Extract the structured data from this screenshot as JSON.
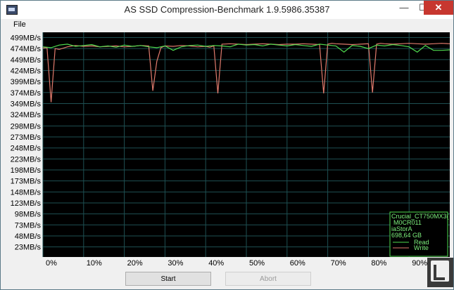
{
  "window": {
    "title": "AS SSD Compression-Benchmark 1.9.5986.35387",
    "minimize_glyph": "—",
    "maximize_glyph": "☐",
    "close_glyph": "✕"
  },
  "menu": {
    "file": "File"
  },
  "legend": {
    "drive_name": "Crucial_CT750MX3(",
    "firmware": "M0CR011",
    "driver": "iaStorA",
    "capacity": "698,64 GB",
    "read_label": "Read",
    "write_label": "Write"
  },
  "buttons": {
    "start": "Start",
    "abort": "Abort"
  },
  "colors": {
    "plot_bg": "#000000",
    "grid": "#1e4f52",
    "read": "#4fdc4f",
    "write": "#e07a6c",
    "legend_border": "#4fdc4f"
  },
  "chart_data": {
    "type": "line",
    "y_tick_labels": [
      "499MB/s",
      "474MB/s",
      "449MB/s",
      "424MB/s",
      "399MB/s",
      "374MB/s",
      "349MB/s",
      "324MB/s",
      "298MB/s",
      "273MB/s",
      "248MB/s",
      "223MB/s",
      "198MB/s",
      "173MB/s",
      "148MB/s",
      "123MB/s",
      "98MB/s",
      "73MB/s",
      "48MB/s",
      "23MB/s"
    ],
    "y_tick_values": [
      499,
      474,
      449,
      424,
      399,
      374,
      349,
      324,
      298,
      273,
      248,
      223,
      198,
      173,
      148,
      123,
      98,
      73,
      48,
      23
    ],
    "x_tick_labels": [
      "0%",
      "10%",
      "20%",
      "30%",
      "40%",
      "50%",
      "60%",
      "70%",
      "80%",
      "90%"
    ],
    "x_tick_values": [
      0,
      10,
      20,
      30,
      40,
      50,
      60,
      70,
      80,
      90
    ],
    "xlim": [
      0,
      100
    ],
    "ylim": [
      0,
      511
    ],
    "grid": true,
    "legend_position": "bottom-right",
    "series": [
      {
        "name": "Read",
        "x": [
          0,
          2,
          4,
          6,
          8,
          10,
          12,
          14,
          16,
          18,
          20,
          22,
          24,
          26,
          28,
          30,
          32,
          34,
          36,
          38,
          40,
          42,
          44,
          46,
          48,
          50,
          52,
          54,
          56,
          58,
          60,
          62,
          64,
          66,
          68,
          70,
          72,
          74,
          76,
          78,
          80,
          82,
          84,
          86,
          88,
          90,
          92,
          94,
          96,
          98,
          100
        ],
        "y": [
          478,
          476,
          482,
          484,
          479,
          481,
          483,
          478,
          480,
          477,
          482,
          479,
          481,
          478,
          476,
          480,
          470,
          478,
          481,
          482,
          479,
          481,
          480,
          478,
          484,
          482,
          483,
          480,
          484,
          482,
          480,
          483,
          481,
          479,
          484,
          482,
          480,
          466,
          481,
          479,
          474,
          482,
          480,
          483,
          481,
          478,
          466,
          481,
          470,
          470,
          471
        ]
      },
      {
        "name": "Write",
        "x": [
          0,
          1,
          2,
          3,
          4,
          6,
          8,
          10,
          12,
          14,
          16,
          18,
          20,
          22,
          24,
          26,
          27,
          28,
          29,
          30,
          32,
          34,
          36,
          38,
          40,
          41,
          42,
          43,
          44,
          46,
          48,
          50,
          52,
          54,
          56,
          58,
          60,
          62,
          64,
          66,
          68,
          69,
          70,
          71,
          72,
          74,
          76,
          78,
          80,
          81,
          82,
          83,
          84,
          86,
          88,
          90,
          92,
          94,
          96,
          98,
          100
        ],
        "y": [
          475,
          476,
          352,
          474,
          472,
          478,
          481,
          479,
          480,
          478,
          479,
          480,
          478,
          479,
          481,
          480,
          378,
          445,
          476,
          480,
          479,
          481,
          480,
          478,
          479,
          477,
          480,
          372,
          484,
          485,
          484,
          483,
          484,
          485,
          484,
          483,
          484,
          484,
          485,
          484,
          483,
          372,
          484,
          486,
          485,
          484,
          483,
          484,
          485,
          374,
          484,
          486,
          485,
          484,
          485,
          486,
          485,
          484,
          485,
          486,
          485
        ]
      }
    ]
  }
}
